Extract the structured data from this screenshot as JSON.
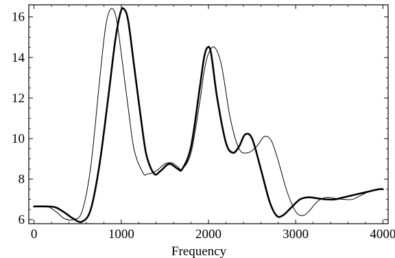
{
  "chart_data": {
    "type": "line",
    "title": "",
    "xlabel": "Frequency",
    "ylabel": "",
    "xlim": [
      -60,
      4060
    ],
    "ylim": [
      5.8,
      16.6
    ],
    "xticks": [
      0,
      1000,
      2000,
      3000,
      4000
    ],
    "xtick_labels": [
      "0",
      "1000",
      "2000",
      "3000",
      "4000"
    ],
    "yticks": [
      6,
      8,
      10,
      12,
      14,
      16
    ],
    "ytick_labels": [
      "6",
      "8",
      "10",
      "12",
      "14",
      "16"
    ],
    "grid": false,
    "legend": "none",
    "series": [
      {
        "style": "thin",
        "color": "#000000",
        "x": [
          0,
          150,
          250,
          350,
          450,
          550,
          650,
          750,
          820,
          880,
          940,
          1000,
          1080,
          1150,
          1250,
          1300,
          1400,
          1500,
          1580,
          1650,
          1700,
          1800,
          1900,
          1950,
          2000,
          2070,
          2150,
          2250,
          2350,
          2450,
          2550,
          2640,
          2720,
          2800,
          2900,
          3000,
          3080,
          3150,
          3250,
          3350,
          3450,
          3550,
          3650,
          3750,
          3850,
          3950,
          4000
        ],
        "y": [
          6.65,
          6.65,
          6.4,
          6.05,
          6.0,
          6.4,
          8.6,
          12.8,
          15.5,
          16.4,
          16.0,
          14.2,
          11.5,
          9.4,
          8.3,
          8.25,
          8.4,
          8.75,
          8.8,
          8.6,
          8.5,
          9.3,
          11.8,
          13.3,
          14.2,
          14.5,
          13.6,
          11.0,
          9.5,
          9.3,
          9.6,
          10.1,
          9.9,
          8.9,
          7.4,
          6.4,
          6.2,
          6.4,
          6.9,
          7.1,
          7.05,
          7.0,
          7.0,
          7.2,
          7.4,
          7.5,
          7.5
        ]
      },
      {
        "style": "thick",
        "color": "#000000",
        "x": [
          0,
          150,
          250,
          350,
          450,
          550,
          650,
          750,
          850,
          930,
          990,
          1030,
          1080,
          1150,
          1250,
          1300,
          1380,
          1450,
          1550,
          1650,
          1700,
          1800,
          1900,
          1950,
          1990,
          2030,
          2100,
          2200,
          2280,
          2350,
          2420,
          2500,
          2600,
          2700,
          2780,
          2850,
          2950,
          3050,
          3150,
          3250,
          3350,
          3450,
          3550,
          3650,
          3750,
          3850,
          3950,
          4000
        ],
        "y": [
          6.65,
          6.65,
          6.6,
          6.35,
          6.05,
          5.9,
          6.5,
          8.7,
          12.0,
          14.8,
          16.2,
          16.4,
          15.8,
          13.5,
          10.2,
          9.0,
          8.25,
          8.4,
          8.75,
          8.5,
          8.5,
          9.6,
          12.5,
          14.0,
          14.5,
          14.2,
          12.0,
          9.8,
          9.3,
          9.6,
          10.2,
          10.0,
          8.5,
          6.9,
          6.2,
          6.2,
          6.6,
          7.0,
          7.1,
          7.05,
          7.0,
          7.0,
          7.1,
          7.2,
          7.3,
          7.4,
          7.5,
          7.5
        ]
      }
    ]
  }
}
